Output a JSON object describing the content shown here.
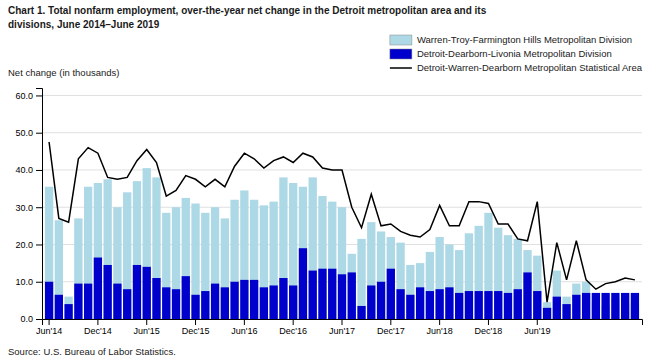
{
  "chart_data": {
    "type": "bar",
    "title": "Chart 1. Total nonfarm employment, over-the-year net change in the Detroit metropolitan area and its",
    "subtitle": "divisions,  June 2014–June  2019",
    "y_label": "Net change (in thousands)",
    "annotations": [
      "Source: U.S. Bureau of Labor Statistics."
    ],
    "categories": [
      "Jun'14",
      null,
      null,
      null,
      null,
      "Dec'14",
      null,
      null,
      null,
      null,
      "Jun'15",
      null,
      null,
      null,
      null,
      "Dec'15",
      null,
      null,
      null,
      null,
      "Jun'16",
      null,
      null,
      null,
      null,
      "Dec'16",
      null,
      null,
      null,
      null,
      "Jun'17",
      null,
      null,
      null,
      null,
      "Dec'17",
      null,
      null,
      null,
      null,
      "Jun'18",
      null,
      null,
      null,
      null,
      "Dec'18",
      null,
      null,
      null,
      null,
      "Jun'19",
      null,
      null,
      null,
      null,
      null,
      null,
      null,
      null,
      null,
      null
    ],
    "series": [
      {
        "name": "Warren-Troy-Farmington Hills Metropolitan Division",
        "type": "bar",
        "color": "#add8e6",
        "values": [
          35.5,
          26.5,
          6.0,
          27.0,
          35.5,
          36.5,
          37.5,
          30.0,
          34.0,
          37.0,
          40.5,
          38.0,
          28.5,
          30.0,
          32.5,
          31.0,
          28.5,
          30.0,
          27.0,
          32.0,
          34.5,
          32.0,
          30.5,
          31.5,
          38.0,
          36.5,
          35.5,
          38.0,
          33.0,
          31.5,
          30.0,
          17.5,
          21.5,
          26.0,
          23.5,
          22.0,
          20.5,
          14.5,
          15.0,
          18.0,
          22.0,
          20.0,
          18.5,
          23.0,
          25.0,
          28.5,
          24.5,
          22.5,
          21.5,
          18.5,
          17.0,
          4.5,
          13.0,
          6.0,
          9.5,
          10.0,
          4.5,
          3.5,
          5.5,
          4.0,
          4.5
        ]
      },
      {
        "name": "Detroit-Dearborn-Livonia Metropolitan Division",
        "type": "bar",
        "color": "#0000cd",
        "values": [
          10.0,
          6.5,
          4.0,
          9.5,
          9.5,
          16.5,
          14.5,
          9.5,
          8.0,
          14.5,
          14.0,
          11.0,
          8.5,
          8.0,
          11.5,
          6.5,
          7.5,
          9.5,
          8.5,
          10.0,
          10.5,
          10.5,
          8.5,
          9.0,
          11.0,
          9.0,
          19.0,
          13.0,
          13.5,
          13.5,
          12.0,
          12.5,
          3.5,
          9.0,
          10.0,
          13.5,
          8.0,
          6.5,
          8.5,
          7.5,
          8.0,
          8.5,
          7.0,
          7.5,
          7.5,
          7.5,
          7.5,
          7.0,
          8.0,
          12.5,
          7.5,
          3.0,
          6.0,
          4.0,
          6.5,
          7.0,
          7.0,
          7.0,
          7.0,
          7.0,
          7.0
        ]
      },
      {
        "name": "Detroit-Warren-Dearborn Metropolitan Statistical Area",
        "type": "line",
        "color": "#000000",
        "values": [
          47.5,
          27.0,
          26.0,
          43.0,
          46.0,
          44.5,
          38.0,
          37.5,
          38.0,
          42.5,
          45.5,
          42.0,
          33.0,
          34.5,
          38.5,
          37.5,
          35.5,
          37.5,
          35.5,
          41.0,
          44.5,
          43.0,
          40.5,
          42.5,
          43.5,
          42.0,
          44.5,
          43.5,
          40.5,
          40.0,
          40.0,
          30.0,
          24.5,
          33.5,
          25.0,
          25.5,
          23.5,
          22.5,
          22.0,
          24.0,
          30.5,
          25.0,
          25.0,
          31.5,
          31.5,
          31.0,
          25.5,
          25.5,
          21.5,
          21.0,
          31.5,
          4.5,
          20.5,
          10.5,
          21.0,
          10.5,
          8.0,
          9.5,
          10.0,
          11.0,
          10.5
        ]
      }
    ],
    "stacked": false,
    "ylim": [
      0,
      62
    ],
    "yticks": [
      {
        "value": 0,
        "label": "0.0"
      },
      {
        "value": 10,
        "label": "10.0"
      },
      {
        "value": 20,
        "label": "20.0"
      },
      {
        "value": 30,
        "label": "30.0"
      },
      {
        "value": 40,
        "label": "40.0"
      },
      {
        "value": 50,
        "label": "50.0"
      },
      {
        "value": 60,
        "label": "60.0"
      }
    ],
    "grid": true,
    "legend": "upper right"
  }
}
